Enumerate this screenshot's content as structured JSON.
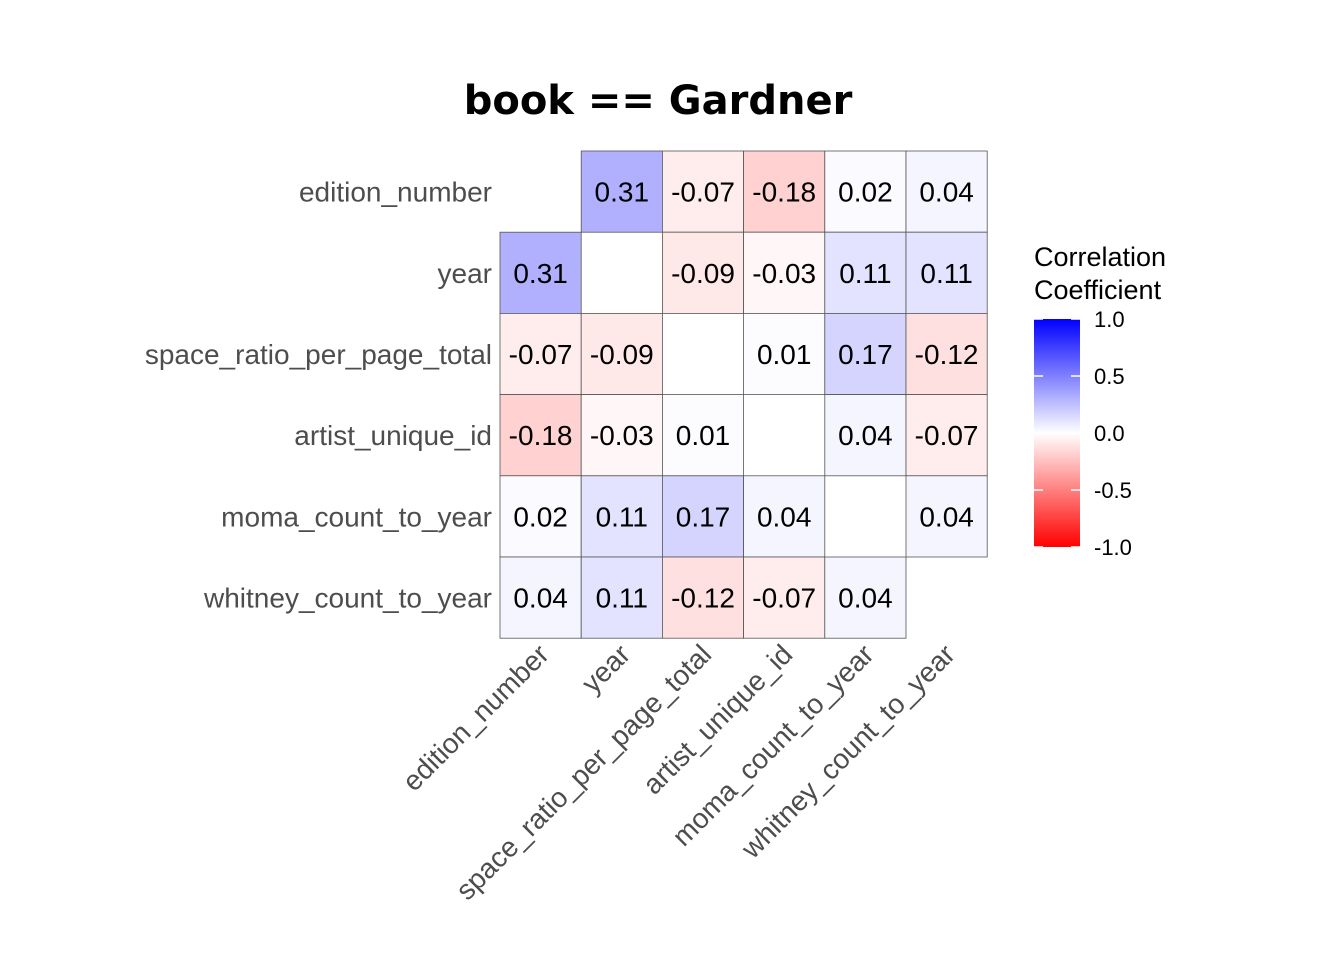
{
  "chart_data": {
    "type": "heatmap",
    "title": "book == Gardner",
    "variables": [
      "edition_number",
      "year",
      "space_ratio_per_page_total",
      "artist_unique_id",
      "moma_count_to_year",
      "whitney_count_to_year"
    ],
    "cells": [
      {
        "row": 0,
        "col": 1,
        "value": 0.31,
        "label": "0.31"
      },
      {
        "row": 0,
        "col": 2,
        "value": -0.07,
        "label": "-0.07"
      },
      {
        "row": 0,
        "col": 3,
        "value": -0.18,
        "label": "-0.18"
      },
      {
        "row": 0,
        "col": 4,
        "value": 0.02,
        "label": "0.02"
      },
      {
        "row": 0,
        "col": 5,
        "value": 0.04,
        "label": "0.04"
      },
      {
        "row": 1,
        "col": 0,
        "value": 0.31,
        "label": "0.31"
      },
      {
        "row": 1,
        "col": 2,
        "value": -0.09,
        "label": "-0.09"
      },
      {
        "row": 1,
        "col": 3,
        "value": -0.03,
        "label": "-0.03"
      },
      {
        "row": 1,
        "col": 4,
        "value": 0.11,
        "label": "0.11"
      },
      {
        "row": 1,
        "col": 5,
        "value": 0.11,
        "label": "0.11"
      },
      {
        "row": 2,
        "col": 0,
        "value": -0.07,
        "label": "-0.07"
      },
      {
        "row": 2,
        "col": 1,
        "value": -0.09,
        "label": "-0.09"
      },
      {
        "row": 2,
        "col": 3,
        "value": 0.01,
        "label": "0.01"
      },
      {
        "row": 2,
        "col": 4,
        "value": 0.17,
        "label": "0.17"
      },
      {
        "row": 2,
        "col": 5,
        "value": -0.12,
        "label": "-0.12"
      },
      {
        "row": 3,
        "col": 0,
        "value": -0.18,
        "label": "-0.18"
      },
      {
        "row": 3,
        "col": 1,
        "value": -0.03,
        "label": "-0.03"
      },
      {
        "row": 3,
        "col": 2,
        "value": 0.01,
        "label": "0.01"
      },
      {
        "row": 3,
        "col": 4,
        "value": 0.04,
        "label": "0.04"
      },
      {
        "row": 3,
        "col": 5,
        "value": -0.07,
        "label": "-0.07"
      },
      {
        "row": 4,
        "col": 0,
        "value": 0.02,
        "label": "0.02"
      },
      {
        "row": 4,
        "col": 1,
        "value": 0.11,
        "label": "0.11"
      },
      {
        "row": 4,
        "col": 2,
        "value": 0.17,
        "label": "0.17"
      },
      {
        "row": 4,
        "col": 3,
        "value": 0.04,
        "label": "0.04"
      },
      {
        "row": 4,
        "col": 5,
        "value": 0.04,
        "label": "0.04"
      },
      {
        "row": 5,
        "col": 0,
        "value": 0.04,
        "label": "0.04"
      },
      {
        "row": 5,
        "col": 1,
        "value": 0.11,
        "label": "0.11"
      },
      {
        "row": 5,
        "col": 2,
        "value": -0.12,
        "label": "-0.12"
      },
      {
        "row": 5,
        "col": 3,
        "value": -0.07,
        "label": "-0.07"
      },
      {
        "row": 5,
        "col": 4,
        "value": 0.04,
        "label": "0.04"
      }
    ],
    "legend": {
      "title_lines": [
        "Correlation",
        "Coefficient"
      ],
      "placement": "right",
      "range": [
        -1.0,
        1.0
      ],
      "ticks": [
        {
          "value": 1.0,
          "label": "1.0"
        },
        {
          "value": 0.5,
          "label": "0.5"
        },
        {
          "value": 0.0,
          "label": "0.0"
        },
        {
          "value": -0.5,
          "label": "-0.5"
        },
        {
          "value": -1.0,
          "label": "-1.0"
        }
      ]
    },
    "colors": {
      "low": "#ff0000",
      "mid": "#ffffff",
      "high": "#0000ff",
      "cell_border": "#555555"
    }
  }
}
